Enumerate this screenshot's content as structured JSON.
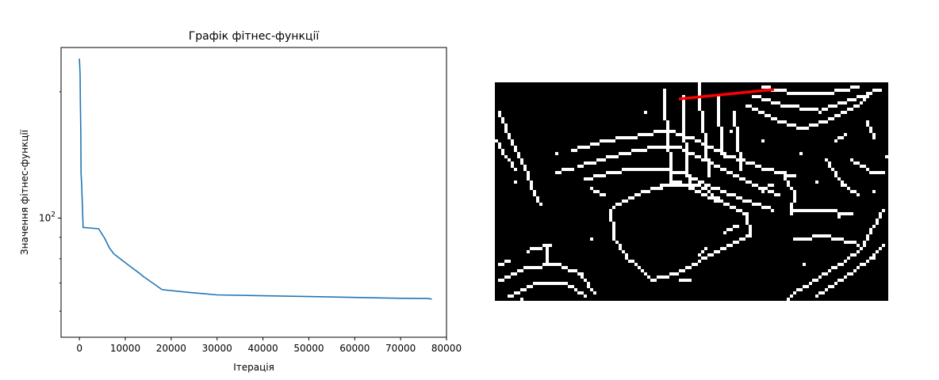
{
  "chart_data": [
    {
      "type": "line",
      "title": "Графік фітнес-функції",
      "xlabel": "Ітерація",
      "ylabel": "Значення фітнес-функції",
      "yscale": "log",
      "xlim": [
        -4000,
        80000
      ],
      "ylim": [
        52,
        255
      ],
      "grid": false,
      "x_ticks": [
        0,
        10000,
        20000,
        30000,
        40000,
        50000,
        60000,
        70000,
        80000
      ],
      "x_tick_labels": [
        "0",
        "10000",
        "20000",
        "30000",
        "40000",
        "50000",
        "60000",
        "70000",
        "80000"
      ],
      "y_major_ticks": [
        100
      ],
      "y_major_tick_labels": [
        "10^2"
      ],
      "y_minor_ticks": [
        60,
        70,
        80,
        90,
        200
      ],
      "line_color": "#1f77b4",
      "series": [
        {
          "x": [
            0,
            150,
            200,
            300,
            350,
            400,
            500,
            800,
            4200,
            5500,
            6500,
            7500,
            9000,
            11000,
            13000,
            14000,
            16000,
            18000,
            24000,
            30000,
            40000,
            50000,
            60000,
            70000,
            76000,
            76800
          ],
          "y": [
            240,
            220,
            190,
            160,
            128,
            125,
            120,
            95,
            94.3,
            89.5,
            85,
            82.2,
            79.8,
            76.8,
            74,
            72.5,
            70,
            67.5,
            66.5,
            65.6,
            65.3,
            65,
            64.7,
            64.4,
            64.3,
            64.1
          ]
        }
      ]
    },
    {
      "type": "heatmap",
      "description_free": true,
      "colors": {
        "background": "#000000",
        "edges": "#ffffff",
        "marker_line": "#ff0000"
      },
      "red_line": {
        "from": [
          232,
          21
        ],
        "to": [
          352,
          9
        ]
      }
    }
  ]
}
